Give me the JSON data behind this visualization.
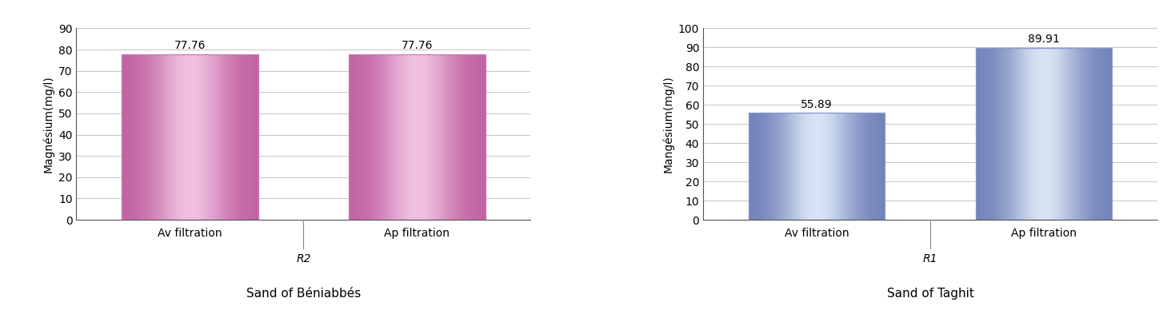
{
  "left_chart": {
    "categories": [
      "Av filtration",
      "Ap filtration"
    ],
    "values": [
      77.76,
      77.76
    ],
    "ylabel": "Magnésium(mg/l)",
    "ylim": [
      0,
      90
    ],
    "yticks": [
      0,
      10,
      20,
      30,
      40,
      50,
      60,
      70,
      80,
      90
    ],
    "bar_edge_color": "#c878b8",
    "bar_dark_color": "#c060a0",
    "bar_light_color": "#f0c0e0",
    "subtitle": "R2",
    "title": "Sand of Béniabbés",
    "value_labels": [
      "77.76",
      "77.76"
    ]
  },
  "right_chart": {
    "categories": [
      "Av filtration",
      "Ap filtration"
    ],
    "values": [
      55.89,
      89.91
    ],
    "ylabel": "Mangésium(mg/l)",
    "ylim": [
      0,
      100
    ],
    "yticks": [
      0,
      10,
      20,
      30,
      40,
      50,
      60,
      70,
      80,
      90,
      100
    ],
    "bar_edge_color": "#8899cc",
    "bar_dark_color": "#7080b8",
    "bar_light_color": "#d8e4f4",
    "subtitle": "R1",
    "title": "Sand of Taghit",
    "value_labels": [
      "55.89",
      "89.91"
    ]
  },
  "background_color": "#ffffff",
  "text_color": "#000000",
  "grid_color": "#bbbbbb",
  "font_size": 10,
  "label_font_size": 10,
  "title_font_size": 11,
  "divider_color": "#888888"
}
